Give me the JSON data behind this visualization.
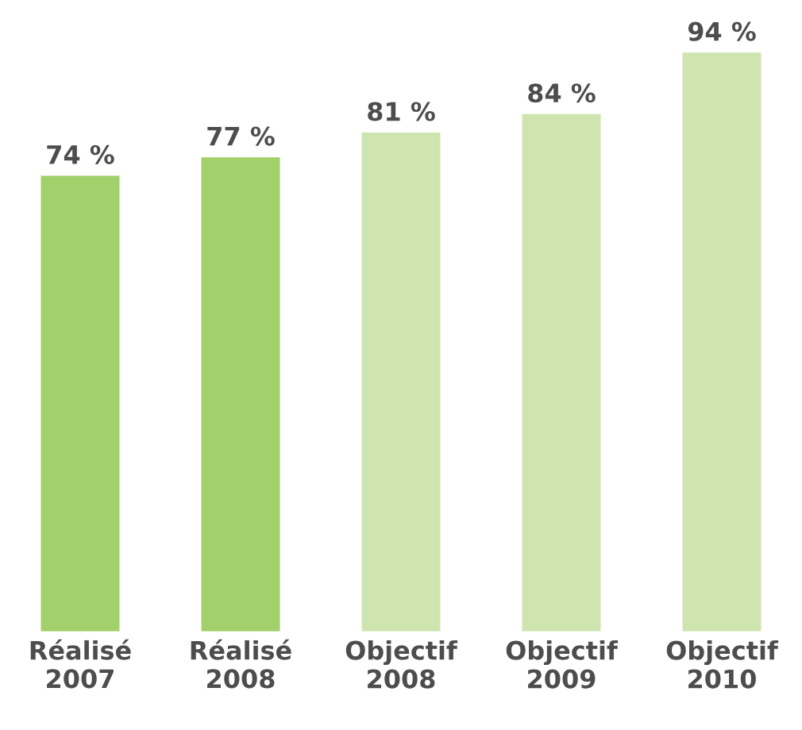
{
  "chart_data": {
    "type": "bar",
    "categories": [
      "Réalisé\n2007",
      "Réalisé\n2008",
      "Objectif\n2008",
      "Objectif\n2009",
      "Objectif\n2010"
    ],
    "values": [
      74,
      77,
      81,
      84,
      94
    ],
    "colors": [
      "#a2d06b",
      "#a2d06b",
      "#cfe5b0",
      "#cfe5b0",
      "#cfe5b0"
    ],
    "value_labels": [
      "74 %",
      "77 %",
      "81 %",
      "84 %",
      "94 %"
    ],
    "grid": false,
    "legend": false
  }
}
